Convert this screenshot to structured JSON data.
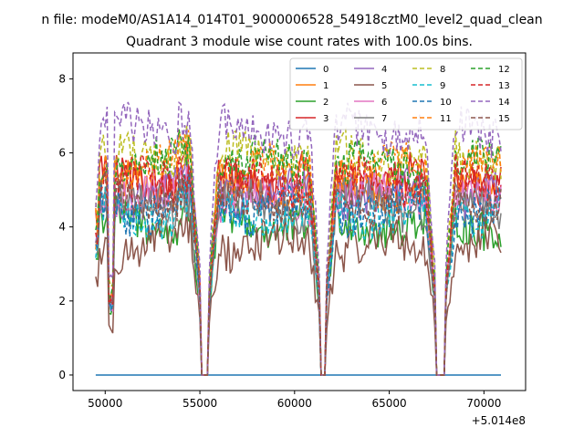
{
  "chart_data": {
    "type": "line",
    "suptitle": "n file: modeM0/AS1A14_014T01_9000006528_54918cztM0_level2_quad_clean",
    "title": "Quadrant 3 module wise count rates with 100.0s bins.",
    "xlabel": "",
    "ylabel": "",
    "x_offset_label": "+5.014e8",
    "xlim": [
      48300,
      72200
    ],
    "ylim": [
      -0.42,
      8.7
    ],
    "xticks": [
      50000,
      55000,
      60000,
      65000,
      70000
    ],
    "xtick_labels": [
      "50000",
      "55000",
      "60000",
      "65000",
      "70000"
    ],
    "yticks": [
      0,
      2,
      4,
      6,
      8
    ],
    "ytick_labels": [
      "0",
      "2",
      "4",
      "6",
      "8"
    ],
    "grid": false,
    "legend": {
      "placement": "top-right",
      "columns": 4
    },
    "x_range": [
      49500,
      70900
    ],
    "gaps": [
      [
        55000,
        55500
      ],
      [
        61300,
        61700
      ],
      [
        67400,
        68000
      ]
    ],
    "series": [
      {
        "name": "0",
        "color": "#1f77b4",
        "dash": "solid",
        "level": 0.0
      },
      {
        "name": "1",
        "color": "#ff7f0e",
        "dash": "solid",
        "level": 5.1
      },
      {
        "name": "2",
        "color": "#2ca02c",
        "dash": "solid",
        "level": 4.1
      },
      {
        "name": "3",
        "color": "#d62728",
        "dash": "solid",
        "level": 5.3
      },
      {
        "name": "4",
        "color": "#9467bd",
        "dash": "solid",
        "level": 4.9
      },
      {
        "name": "5",
        "color": "#8c564b",
        "dash": "solid",
        "level": 3.5
      },
      {
        "name": "6",
        "color": "#e377c2",
        "dash": "solid",
        "level": 4.8
      },
      {
        "name": "7",
        "color": "#7f7f7f",
        "dash": "solid",
        "level": 4.6
      },
      {
        "name": "8",
        "color": "#bcbd22",
        "dash": "dashed",
        "level": 5.9
      },
      {
        "name": "9",
        "color": "#17becf",
        "dash": "dashed",
        "level": 4.4
      },
      {
        "name": "10",
        "color": "#1f77b4",
        "dash": "dashed",
        "level": 4.5
      },
      {
        "name": "11",
        "color": "#ff7f0e",
        "dash": "dashed",
        "level": 5.6
      },
      {
        "name": "12",
        "color": "#2ca02c",
        "dash": "dashed",
        "level": 5.7
      },
      {
        "name": "13",
        "color": "#d62728",
        "dash": "dashed",
        "level": 5.2
      },
      {
        "name": "14",
        "color": "#9467bd",
        "dash": "dashed",
        "level": 6.6
      },
      {
        "name": "15",
        "color": "#8c564b",
        "dash": "dashed",
        "level": 4.7
      }
    ]
  }
}
